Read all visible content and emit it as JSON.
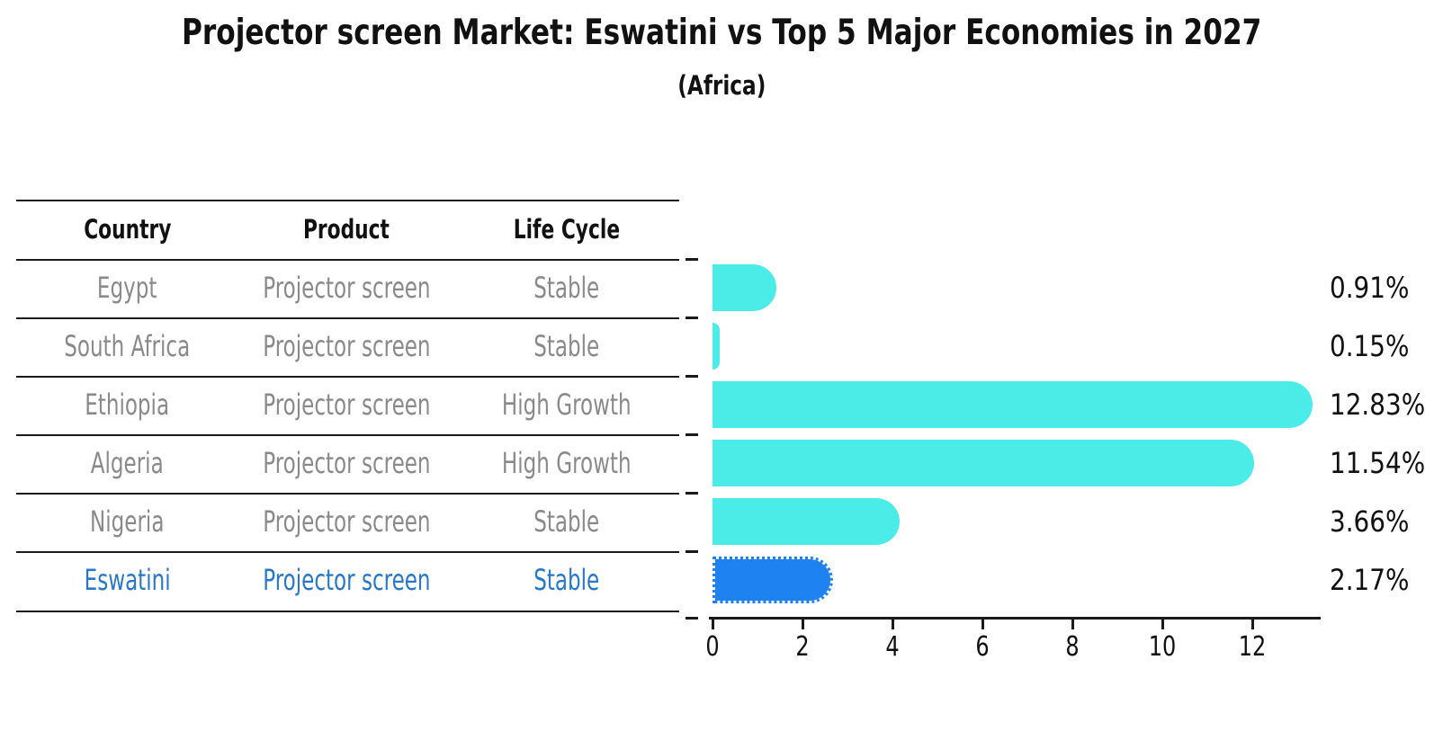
{
  "title": "Projector screen Market: Eswatini vs Top 5 Major Economies in 2027",
  "subtitle": "(Africa)",
  "table": {
    "headers": [
      "Country",
      "Product",
      "Life Cycle"
    ],
    "rows": [
      {
        "country": "Egypt",
        "product": "Projector screen",
        "life_cycle": "Stable",
        "highlight": false
      },
      {
        "country": "South Africa",
        "product": "Projector screen",
        "life_cycle": "Stable",
        "highlight": false
      },
      {
        "country": "Ethiopia",
        "product": "Projector screen",
        "life_cycle": "High Growth",
        "highlight": false
      },
      {
        "country": "Algeria",
        "product": "Projector screen",
        "life_cycle": "High Growth",
        "highlight": false
      },
      {
        "country": "Nigeria",
        "product": "Projector screen",
        "life_cycle": "Stable",
        "highlight": false
      },
      {
        "country": "Eswatini",
        "product": "Projector screen",
        "life_cycle": "Stable",
        "highlight": true
      }
    ]
  },
  "chart_data": {
    "type": "bar",
    "orientation": "horizontal",
    "title": "Projector screen Market: Eswatini vs Top 5 Major Economies in 2027 (Africa)",
    "categories": [
      "Egypt",
      "South Africa",
      "Ethiopia",
      "Algeria",
      "Nigeria",
      "Eswatini"
    ],
    "values": [
      0.91,
      0.15,
      12.83,
      11.54,
      3.66,
      2.17
    ],
    "labels": [
      "0.91%",
      "0.15%",
      "12.83%",
      "11.54%",
      "3.66%",
      "2.17%"
    ],
    "x_ticks": [
      "0",
      "2",
      "4",
      "6",
      "8",
      "10",
      "12"
    ],
    "xlim": [
      0,
      13.5
    ],
    "grid": false,
    "legend": false,
    "bar_color": "#4bebe8",
    "highlight_color": "#1e82f0",
    "highlight_index": 5,
    "highlight_text_color": "#2878c8"
  }
}
